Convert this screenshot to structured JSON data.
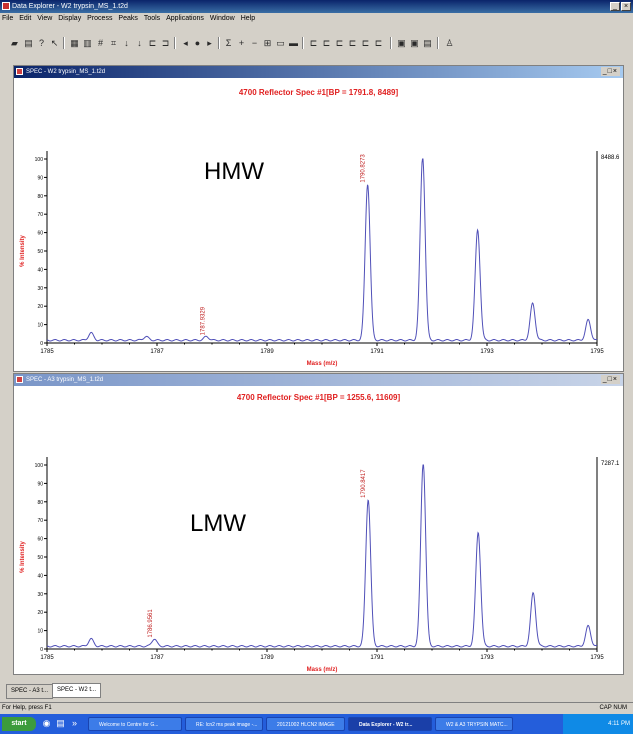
{
  "app": {
    "title": "Data Explorer - W2 trypsin_MS_1.t2d"
  },
  "menu": [
    "File",
    "Edit",
    "View",
    "Display",
    "Process",
    "Peaks",
    "Tools",
    "Applications",
    "Window",
    "Help"
  ],
  "toolbar_icons": [
    "open-icon",
    "print-icon",
    "help-icon",
    "pointer-icon",
    "copy-icon",
    "paste-icon",
    "peak-label-icon",
    "trace-icon",
    "arrow-down-icon",
    "arrow-down-icon",
    "zoom-icon",
    "zoom-out-icon",
    "sum-icon",
    "nav-icon",
    "nav-icon",
    "nav-icon",
    "plus-icon",
    "minus-icon"
  ],
  "windows": [
    {
      "title": "SPEC - W2 trypsin_MS_1.t2d",
      "spec_title": "4700 Reflector Spec #1[BP = 1791.8, 8489]",
      "overlay_label": "HMW",
      "right_label": "8488.6",
      "peak_label": "1790.8273",
      "minor_label": "1787.9329"
    },
    {
      "title": "SPEC - A3 trypsin_MS_1.t2d",
      "spec_title": "4700 Reflector Spec #1[BP = 1255.6, 11609]",
      "overlay_label": "LMW",
      "right_label": "7287.1",
      "peak_label": "1790.8417",
      "minor_label": "1786.9561"
    }
  ],
  "chart_data": [
    {
      "type": "line",
      "title": "4700 Reflector Spec #1[BP = 1791.8, 8489]",
      "xlabel": "Mass (m/z)",
      "ylabel": "% Intensity",
      "xlim": [
        1785,
        1795
      ],
      "ylim": [
        0,
        100
      ],
      "x_ticks": [
        "1785",
        "1787",
        "1789",
        "1791",
        "1793",
        "1795"
      ],
      "y_ticks": [
        "0",
        "10",
        "20",
        "30",
        "40",
        "50",
        "60",
        "70",
        "80",
        "90",
        "100"
      ],
      "peaks": [
        {
          "x": 1785.8,
          "y": 4
        },
        {
          "x": 1786.8,
          "y": 2
        },
        {
          "x": 1787.9,
          "y": 2
        },
        {
          "x": 1790.83,
          "y": 85
        },
        {
          "x": 1791.83,
          "y": 100
        },
        {
          "x": 1792.83,
          "y": 60
        },
        {
          "x": 1793.83,
          "y": 20
        },
        {
          "x": 1794.84,
          "y": 11
        }
      ],
      "baseline": 1.5
    },
    {
      "type": "line",
      "title": "4700 Reflector Spec #1[BP = 1255.6, 11609]",
      "xlabel": "Mass (m/z)",
      "ylabel": "% Intensity",
      "xlim": [
        1785,
        1795
      ],
      "ylim": [
        0,
        100
      ],
      "x_ticks": [
        "1785",
        "1787",
        "1789",
        "1791",
        "1793",
        "1795"
      ],
      "y_ticks": [
        "0",
        "10",
        "20",
        "30",
        "40",
        "50",
        "60",
        "70",
        "80",
        "90",
        "100"
      ],
      "peaks": [
        {
          "x": 1785.8,
          "y": 4
        },
        {
          "x": 1786.95,
          "y": 4
        },
        {
          "x": 1790.84,
          "y": 80
        },
        {
          "x": 1791.84,
          "y": 100
        },
        {
          "x": 1792.84,
          "y": 62
        },
        {
          "x": 1793.84,
          "y": 29
        },
        {
          "x": 1794.84,
          "y": 11
        }
      ],
      "baseline": 1.5
    }
  ],
  "tabs": [
    "SPEC - A3 t...",
    "SPEC - W2 t..."
  ],
  "statusbar": {
    "left": "For Help, press F1",
    "right": "CAP NUM"
  },
  "taskbar": {
    "start": "start",
    "items": [
      "Welcome to Centre for G...",
      "RE: lcn2 ms peak image -...",
      "20121002 HLCN2 IMAGE",
      "Data Explorer - W2 tr...",
      "W2 & A3 TRYPSIN MATC..."
    ],
    "clock": "4:11 PM"
  },
  "colors": {
    "spectrum": "#5050b8",
    "annotation": "#e02020",
    "title_active": "#0a246a",
    "title_inactive": "#7a96c8"
  }
}
